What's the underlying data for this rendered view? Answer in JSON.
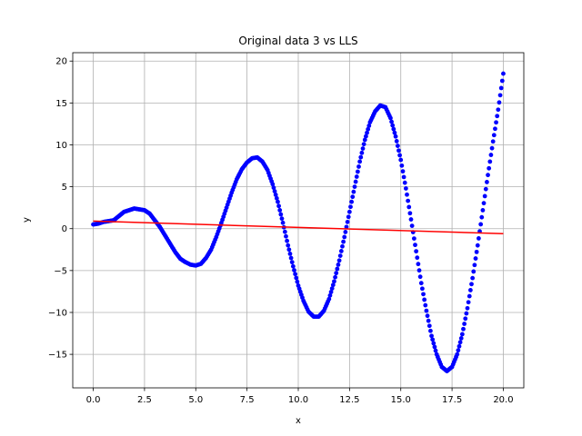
{
  "chart_data": {
    "type": "scatter",
    "title": "Original data 3 vs LLS",
    "xlabel": "x",
    "ylabel": "y",
    "xlim": [
      -1.0,
      21.0
    ],
    "ylim": [
      -19.0,
      21.0
    ],
    "xticks": [
      0.0,
      2.5,
      5.0,
      7.5,
      10.0,
      12.5,
      15.0,
      17.5,
      20.0
    ],
    "xtick_labels": [
      "0.0",
      "2.5",
      "5.0",
      "7.5",
      "10.0",
      "12.5",
      "15.0",
      "17.5",
      "20.0"
    ],
    "yticks": [
      -15,
      -10,
      -5,
      0,
      5,
      10,
      15,
      20
    ],
    "ytick_labels": [
      "−15",
      "−10",
      "−5",
      "0",
      "5",
      "10",
      "15",
      "20"
    ],
    "grid": true,
    "series": [
      {
        "type": "scatter",
        "color": "#0000ff",
        "x": [
          0.0,
          0.25,
          0.5,
          0.75,
          1.0,
          1.25,
          1.5,
          1.75,
          2.0,
          2.25,
          2.5,
          2.75,
          3.0,
          3.25,
          3.5,
          3.75,
          4.0,
          4.25,
          4.5,
          4.75,
          5.0,
          5.25,
          5.5,
          5.75,
          6.0,
          6.25,
          6.5,
          6.75,
          7.0,
          7.25,
          7.5,
          7.75,
          8.0,
          8.25,
          8.5,
          8.75,
          9.0,
          9.25,
          9.5,
          9.75,
          10.0,
          10.25,
          10.5,
          10.75,
          11.0,
          11.25,
          11.5,
          11.75,
          12.0,
          12.25,
          12.5,
          12.75,
          13.0,
          13.25,
          13.5,
          13.75,
          14.0,
          14.25,
          14.5,
          14.75,
          15.0,
          15.25,
          15.5,
          15.75,
          16.0,
          16.25,
          16.5,
          16.75,
          17.0,
          17.25,
          17.5,
          17.75,
          18.0,
          18.25,
          18.5,
          18.75,
          19.0,
          19.25,
          19.5,
          19.75,
          20.0
        ],
        "y": [
          0.5,
          0.6,
          0.8,
          0.9,
          1.0,
          1.5,
          2.0,
          2.2,
          2.4,
          2.3,
          2.2,
          1.8,
          1.0,
          0.2,
          -0.8,
          -1.8,
          -2.8,
          -3.6,
          -4.0,
          -4.3,
          -4.4,
          -4.2,
          -3.5,
          -2.5,
          -1.0,
          0.7,
          2.5,
          4.3,
          5.9,
          7.1,
          7.9,
          8.4,
          8.5,
          8.0,
          7.0,
          5.3,
          3.2,
          0.7,
          -2.0,
          -4.5,
          -6.8,
          -8.6,
          -9.9,
          -10.5,
          -10.5,
          -9.8,
          -8.4,
          -6.3,
          -3.8,
          -1.0,
          2.0,
          5.0,
          8.0,
          10.6,
          12.7,
          14.0,
          14.7,
          14.5,
          13.2,
          11.0,
          8.2,
          4.8,
          1.1,
          -2.7,
          -6.5,
          -9.8,
          -12.8,
          -15.0,
          -16.5,
          -17.0,
          -16.5,
          -15.0,
          -12.6,
          -9.5,
          -5.9,
          -2.0,
          2.2,
          6.4,
          10.4,
          14.2,
          18.5
        ]
      },
      {
        "type": "line",
        "color": "#ff0000",
        "x": [
          0.0,
          20.0
        ],
        "y": [
          0.9,
          -0.6
        ]
      }
    ]
  }
}
